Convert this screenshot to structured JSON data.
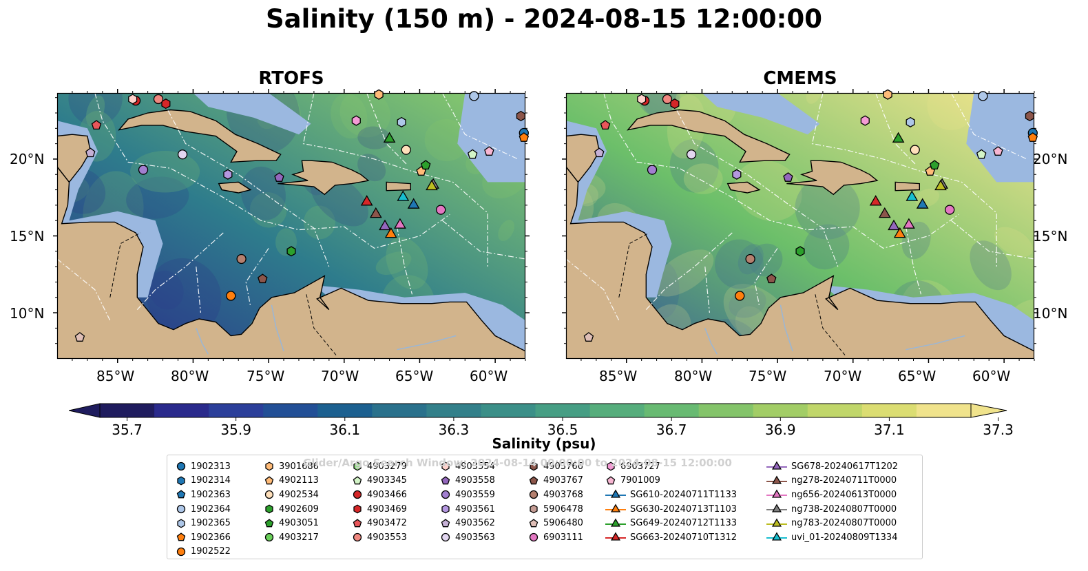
{
  "title": "Salinity (150 m) - 2024-08-15 12:00:00",
  "panels": [
    {
      "key": "rtofs",
      "title": "RTOFS",
      "field_low": "#2a2f8a",
      "field_mid": "#2e7c8c",
      "field_high": "#8fcf6a"
    },
    {
      "key": "cmems",
      "title": "CMEMS",
      "field_low": "#33549a",
      "field_mid": "#6cbf6a",
      "field_high": "#f2e48e"
    }
  ],
  "axes": {
    "lon_ticks": [
      "85°W",
      "80°W",
      "75°W",
      "70°W",
      "65°W",
      "60°W"
    ],
    "lat_ticks": [
      "20°N",
      "15°N",
      "10°N"
    ]
  },
  "colorbar": {
    "label": "Salinity (psu)",
    "ticks": [
      "35.7",
      "35.9",
      "36.1",
      "36.3",
      "36.5",
      "36.7",
      "36.9",
      "37.1",
      "37.3"
    ],
    "min": 35.7,
    "max": 37.3,
    "step": 0.1,
    "colors": [
      "#1f1c5e",
      "#2a2a8c",
      "#2b3f9a",
      "#224f96",
      "#1c6090",
      "#2a718c",
      "#33808a",
      "#3b8f88",
      "#469e84",
      "#56ad7c",
      "#68ba72",
      "#84c46a",
      "#a2cd66",
      "#c0d66a",
      "#dbdd72",
      "#f0e38c"
    ],
    "extend": "both"
  },
  "colors": {
    "land": "#d2b48c",
    "shelf": "#9bb8e0",
    "eez_line": "#ffffff"
  },
  "watermark": "Glider/Argo Search Window: 2024-08-14 00:00:00 to 2024-08-15 12:00:00",
  "legend": {
    "columns": [
      [
        {
          "label": "1902313",
          "marker": "circle",
          "color": "#1f77b4"
        },
        {
          "label": "1902314",
          "marker": "hexagon",
          "color": "#1f77b4"
        },
        {
          "label": "1902363",
          "marker": "pentagon",
          "color": "#1f77b4"
        },
        {
          "label": "1902364",
          "marker": "circle",
          "color": "#aec7e8"
        },
        {
          "label": "1902365",
          "marker": "hexagon",
          "color": "#aec7e8"
        },
        {
          "label": "1902366",
          "marker": "pentagon",
          "color": "#ff7f0e"
        },
        {
          "label": "1902522",
          "marker": "circle",
          "color": "#ff7f0e"
        }
      ],
      [
        {
          "label": "3901686",
          "marker": "hexagon",
          "color": "#ffbb78"
        },
        {
          "label": "4902113",
          "marker": "pentagon",
          "color": "#ffbb78"
        },
        {
          "label": "4902534",
          "marker": "circle",
          "color": "#ffe0bb"
        },
        {
          "label": "4902609",
          "marker": "hexagon",
          "color": "#2ca02c"
        },
        {
          "label": "4903051",
          "marker": "pentagon",
          "color": "#2ca02c"
        },
        {
          "label": "4903217",
          "marker": "circle",
          "color": "#6ad05a"
        }
      ],
      [
        {
          "label": "4903279",
          "marker": "hexagon",
          "color": "#98df8a"
        },
        {
          "label": "4903345",
          "marker": "pentagon",
          "color": "#d4f5c8"
        },
        {
          "label": "4903466",
          "marker": "circle",
          "color": "#d62728"
        },
        {
          "label": "4903469",
          "marker": "hexagon",
          "color": "#d62728"
        },
        {
          "label": "4903472",
          "marker": "pentagon",
          "color": "#e8565a"
        },
        {
          "label": "4903553",
          "marker": "circle",
          "color": "#f08880"
        }
      ],
      [
        {
          "label": "4903554",
          "marker": "hexagon",
          "color": "#ffd2cc"
        },
        {
          "label": "4903558",
          "marker": "pentagon",
          "color": "#9467bd"
        },
        {
          "label": "4903559",
          "marker": "circle",
          "color": "#a27fd0"
        },
        {
          "label": "4903561",
          "marker": "hexagon",
          "color": "#b497e0"
        },
        {
          "label": "4903562",
          "marker": "pentagon",
          "color": "#c5b0d5"
        },
        {
          "label": "4903563",
          "marker": "circle",
          "color": "#e2d6f0"
        }
      ],
      [
        {
          "label": "4903766",
          "marker": "hexagon",
          "color": "#8c564b"
        },
        {
          "label": "4903767",
          "marker": "pentagon",
          "color": "#8c564b"
        },
        {
          "label": "4903768",
          "marker": "circle",
          "color": "#b5806f"
        },
        {
          "label": "5906478",
          "marker": "hexagon",
          "color": "#c49c94"
        },
        {
          "label": "5906480",
          "marker": "pentagon",
          "color": "#e0bfb7"
        },
        {
          "label": "6903111",
          "marker": "circle",
          "color": "#e377c2"
        }
      ],
      [
        {
          "label": "6903727",
          "marker": "hexagon",
          "color": "#f49bd5"
        },
        {
          "label": "7901009",
          "marker": "pentagon",
          "color": "#f7b6d2"
        },
        {
          "label": "SG610-20240711T1133",
          "marker": "triangle",
          "color": "#1f77b4",
          "line": true
        },
        {
          "label": "SG630-20240713T1103",
          "marker": "triangle",
          "color": "#ff7f0e",
          "line": true
        },
        {
          "label": "SG649-20240712T1133",
          "marker": "triangle",
          "color": "#2ca02c",
          "line": true
        },
        {
          "label": "SG663-20240710T1312",
          "marker": "triangle",
          "color": "#d62728",
          "line": true
        }
      ],
      [
        {
          "label": "SG678-20240617T1202",
          "marker": "triangle",
          "color": "#9467bd",
          "line": true
        },
        {
          "label": "ng278-20240711T0000",
          "marker": "triangle",
          "color": "#8c564b",
          "line": true
        },
        {
          "label": "ng656-20240613T0000",
          "marker": "triangle",
          "color": "#e377c2",
          "line": true
        },
        {
          "label": "ng738-20240807T0000",
          "marker": "triangle",
          "color": "#7f7f7f",
          "line": true
        },
        {
          "label": "ng783-20240807T0000",
          "marker": "triangle",
          "color": "#bcbd22",
          "line": true
        },
        {
          "label": "uvi_01-20240809T1334",
          "marker": "triangle",
          "color": "#17becf",
          "line": true
        }
      ]
    ]
  },
  "floats": [
    {
      "id": "1902313",
      "lon": -58.1,
      "lat": 21.7
    },
    {
      "id": "1902364",
      "lon": -61.4,
      "lat": 24.1
    },
    {
      "id": "1902365",
      "lon": -66.2,
      "lat": 22.4
    },
    {
      "id": "1902366",
      "lon": -58.1,
      "lat": 21.4
    },
    {
      "id": "1902522",
      "lon": -77.5,
      "lat": 11.1
    },
    {
      "id": "3901686",
      "lon": -67.7,
      "lat": 24.2
    },
    {
      "id": "4902113",
      "lon": -64.9,
      "lat": 19.2
    },
    {
      "id": "4902534",
      "lon": -65.9,
      "lat": 20.6
    },
    {
      "id": "4902609",
      "lon": -73.5,
      "lat": 14.0
    },
    {
      "id": "4903051",
      "lon": -64.6,
      "lat": 19.6
    },
    {
      "id": "4903345",
      "lon": -61.5,
      "lat": 20.3
    },
    {
      "id": "4903466",
      "lon": -83.8,
      "lat": 23.8
    },
    {
      "id": "4903469",
      "lon": -81.8,
      "lat": 23.6
    },
    {
      "id": "4903472",
      "lon": -86.4,
      "lat": 22.2
    },
    {
      "id": "4903553",
      "lon": -82.3,
      "lat": 23.9
    },
    {
      "id": "4903554",
      "lon": -84.0,
      "lat": 23.9
    },
    {
      "id": "4903558",
      "lon": -74.3,
      "lat": 18.8
    },
    {
      "id": "4903559",
      "lon": -83.3,
      "lat": 19.3
    },
    {
      "id": "4903561",
      "lon": -77.7,
      "lat": 19.0
    },
    {
      "id": "4903562",
      "lon": -86.8,
      "lat": 20.4
    },
    {
      "id": "4903563",
      "lon": -80.7,
      "lat": 20.3
    },
    {
      "id": "4903766",
      "lon": -58.3,
      "lat": 22.8
    },
    {
      "id": "4903767",
      "lon": -75.4,
      "lat": 12.2
    },
    {
      "id": "4903768",
      "lon": -76.8,
      "lat": 13.5
    },
    {
      "id": "5906480",
      "lon": -87.5,
      "lat": 8.4
    },
    {
      "id": "6903111",
      "lon": -63.6,
      "lat": 16.7
    },
    {
      "id": "6903727",
      "lon": -69.2,
      "lat": 22.5
    },
    {
      "id": "7901009",
      "lon": -60.4,
      "lat": 20.5
    }
  ],
  "gliders": [
    {
      "id": "SG610-20240711T1133",
      "lon": -65.4,
      "lat": 17.1
    },
    {
      "id": "SG630-20240713T1103",
      "lon": -66.9,
      "lat": 15.2
    },
    {
      "id": "SG649-20240712T1133",
      "lon": -67.0,
      "lat": 21.4
    },
    {
      "id": "SG663-20240710T1312",
      "lon": -68.5,
      "lat": 17.3
    },
    {
      "id": "SG678-20240617T1202",
      "lon": -67.3,
      "lat": 15.7
    },
    {
      "id": "ng278-20240711T0000",
      "lon": -67.9,
      "lat": 16.5
    },
    {
      "id": "ng656-20240613T0000",
      "lon": -66.3,
      "lat": 15.8
    },
    {
      "id": "ng738-20240807T0000",
      "lon": -64.1,
      "lat": 18.4
    },
    {
      "id": "ng783-20240807T0000",
      "lon": -64.2,
      "lat": 18.3
    },
    {
      "id": "uvi_01-20240809T1334",
      "lon": -66.1,
      "lat": 17.6
    }
  ]
}
